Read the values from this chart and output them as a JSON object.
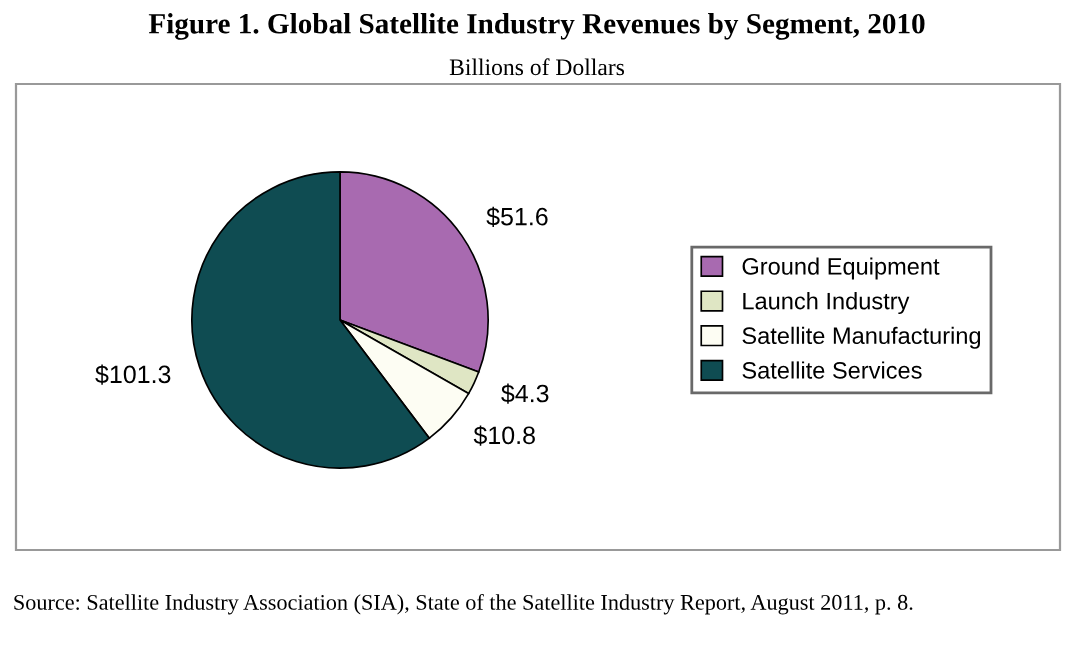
{
  "chart_data": {
    "type": "pie",
    "title": "Figure 1. Global Satellite Industry Revenues by Segment, 2010",
    "subtitle": "Billions of Dollars",
    "categories": [
      "Ground Equipment",
      "Launch Industry",
      "Satellite Manufacturing",
      "Satellite Services"
    ],
    "values": [
      51.6,
      4.3,
      10.8,
      101.3
    ],
    "colors": [
      "#a86ab0",
      "#dfe6c4",
      "#fdfdf3",
      "#0f4c52"
    ],
    "value_labels": [
      "$51.6",
      "$4.3",
      "$10.8",
      "$101.3"
    ],
    "legend": "right",
    "annotations": [
      "Source: Satellite Industry Association (SIA), State of the Satellite Industry Report, August 2011, p. 8."
    ]
  }
}
